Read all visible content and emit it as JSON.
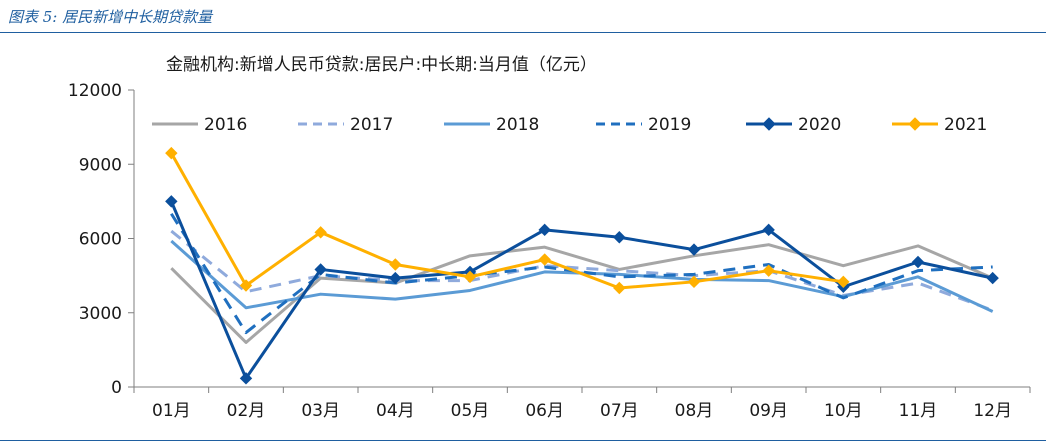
{
  "figure": {
    "title": "图表 5:  居民新增中长期贷款量"
  },
  "chart_data": {
    "type": "line",
    "title": "金融机构:新增人民币贷款:居民户:中长期:当月值（亿元）",
    "xlabel": "",
    "ylabel": "",
    "ylim": [
      0,
      12000
    ],
    "yticks": [
      0,
      3000,
      6000,
      9000,
      12000
    ],
    "ytick_labels": [
      "0",
      "3000",
      "6000",
      "9000",
      "12000"
    ],
    "categories": [
      "01月",
      "02月",
      "03月",
      "04月",
      "05月",
      "06月",
      "07月",
      "08月",
      "09月",
      "10月",
      "11月",
      "12月"
    ],
    "legend_position": "top",
    "series": [
      {
        "name": "2016",
        "color": "#a6a6a6",
        "style": "solid",
        "marker": "none",
        "values": [
          4800,
          1800,
          4400,
          4200,
          5300,
          5650,
          4750,
          5300,
          5750,
          4900,
          5700,
          4400
        ]
      },
      {
        "name": "2017",
        "color": "#8faadc",
        "style": "dashed",
        "marker": "none",
        "values": [
          6300,
          3850,
          4500,
          4300,
          4300,
          4900,
          4700,
          4500,
          4700,
          3700,
          4200,
          3100
        ]
      },
      {
        "name": "2018",
        "color": "#5b9bd5",
        "style": "solid",
        "marker": "none",
        "values": [
          5900,
          3200,
          3750,
          3550,
          3900,
          4650,
          4550,
          4350,
          4300,
          3650,
          4450,
          3050
        ]
      },
      {
        "name": "2019",
        "color": "#1f6fbf",
        "style": "dashed",
        "marker": "none",
        "values": [
          7000,
          2200,
          4550,
          4200,
          4500,
          4850,
          4450,
          4550,
          4950,
          3600,
          4700,
          4850
        ]
      },
      {
        "name": "2020",
        "color": "#0b4f9c",
        "style": "solid",
        "marker": "diamond",
        "values": [
          7500,
          350,
          4750,
          4400,
          4650,
          6350,
          6050,
          5550,
          6350,
          4050,
          5050,
          4400
        ]
      },
      {
        "name": "2021",
        "color": "#ffb000",
        "style": "solid",
        "marker": "diamond",
        "values": [
          9450,
          4100,
          6250,
          4950,
          4450,
          5150,
          4000,
          4250,
          4700,
          4250,
          null,
          null
        ]
      }
    ]
  }
}
